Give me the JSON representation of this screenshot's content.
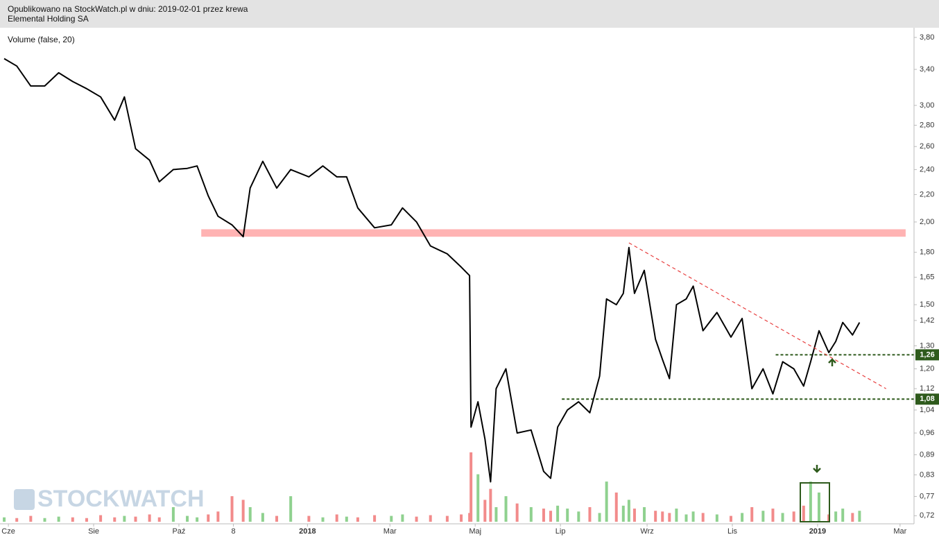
{
  "header": {
    "published": "Opublikowano na StockWatch.pl w dniu: 2019-02-01 przez krewa",
    "company": "Elemental Holding SA"
  },
  "logo": "STOCKWATCH",
  "chart_data": {
    "type": "line",
    "log_scale": true,
    "color": "#000000",
    "indicator_label": "Volume (false, 20)",
    "x": [
      "2017-05-29",
      "2017-06-07",
      "2017-06-17",
      "2017-06-27",
      "2017-07-07",
      "2017-07-17",
      "2017-07-27",
      "2017-08-06",
      "2017-08-16",
      "2017-08-23",
      "2017-08-31",
      "2017-09-10",
      "2017-09-17",
      "2017-09-27",
      "2017-10-07",
      "2017-10-14",
      "2017-10-22",
      "2017-10-29",
      "2017-11-08",
      "2017-11-16",
      "2017-11-21",
      "2017-11-30",
      "2017-12-10",
      "2017-12-20",
      "2018-01-02",
      "2018-01-12",
      "2018-01-22",
      "2018-01-29",
      "2018-02-06",
      "2018-02-18",
      "2018-03-02",
      "2018-03-10",
      "2018-03-20",
      "2018-03-30",
      "2018-04-11",
      "2018-04-21",
      "2018-04-27",
      "2018-04-28",
      "2018-05-03",
      "2018-05-08",
      "2018-05-12",
      "2018-05-16",
      "2018-05-23",
      "2018-05-31",
      "2018-06-10",
      "2018-06-19",
      "2018-06-24",
      "2018-06-29",
      "2018-07-06",
      "2018-07-14",
      "2018-07-22",
      "2018-07-29",
      "2018-08-03",
      "2018-08-10",
      "2018-08-15",
      "2018-08-19",
      "2018-08-23",
      "2018-08-30",
      "2018-09-07",
      "2018-09-12",
      "2018-09-17",
      "2018-09-22",
      "2018-09-29",
      "2018-10-04",
      "2018-10-11",
      "2018-10-21",
      "2018-10-31",
      "2018-11-08",
      "2018-11-15",
      "2018-11-23",
      "2018-11-30",
      "2018-12-07",
      "2018-12-15",
      "2018-12-22",
      "2018-12-27",
      "2019-01-02",
      "2019-01-09",
      "2019-01-14",
      "2019-01-19",
      "2019-01-26",
      "2019-01-31"
    ],
    "series": [
      {
        "name": "Elemental Holding SA",
        "color": "#000000",
        "values": [
          3.53,
          3.44,
          3.21,
          3.21,
          3.36,
          3.26,
          3.18,
          3.09,
          2.85,
          3.09,
          2.58,
          2.48,
          2.3,
          2.4,
          2.41,
          2.43,
          2.19,
          2.04,
          1.98,
          1.9,
          2.25,
          2.47,
          2.25,
          2.4,
          2.34,
          2.43,
          2.34,
          2.34,
          2.1,
          1.96,
          1.98,
          2.1,
          2.0,
          1.84,
          1.79,
          1.71,
          1.66,
          0.98,
          1.07,
          0.94,
          0.81,
          1.12,
          1.2,
          0.96,
          0.97,
          0.84,
          0.82,
          0.98,
          1.04,
          1.07,
          1.03,
          1.17,
          1.53,
          1.5,
          1.56,
          1.83,
          1.56,
          1.69,
          1.33,
          1.24,
          1.16,
          1.5,
          1.53,
          1.6,
          1.37,
          1.46,
          1.34,
          1.43,
          1.12,
          1.2,
          1.1,
          1.23,
          1.2,
          1.13,
          1.23,
          1.37,
          1.27,
          1.32,
          1.41,
          1.35,
          1.41
        ]
      }
    ],
    "volume": {
      "name": "Volume (false, 20)",
      "up_color": "#8fd18f",
      "down_color": "#f28b8b",
      "values": [
        6,
        5,
        8,
        5,
        7,
        6,
        5,
        9,
        6,
        8,
        7,
        10,
        6,
        20,
        8,
        6,
        10,
        14,
        35,
        30,
        20,
        12,
        8,
        35,
        8,
        6,
        10,
        7,
        6,
        9,
        8,
        10,
        7,
        9,
        8,
        10,
        12,
        95,
        65,
        30,
        45,
        20,
        35,
        25,
        20,
        18,
        15,
        22,
        18,
        14,
        20,
        12,
        55,
        40,
        22,
        30,
        18,
        20,
        15,
        14,
        12,
        18,
        10,
        14,
        12,
        10,
        8,
        12,
        20,
        15,
        18,
        12,
        14,
        22,
        55,
        40,
        10,
        14,
        18,
        12,
        15
      ]
    },
    "xlim": [
      "2017-05-26",
      "2019-03-11"
    ],
    "xticks": [
      {
        "value": "2017-06-01",
        "label": "Cze"
      },
      {
        "value": "2017-08-01",
        "label": "Sie"
      },
      {
        "value": "2017-10-01",
        "label": "Paź"
      },
      {
        "value": "2017-11-09",
        "label": "8"
      },
      {
        "value": "2018-01-01",
        "label": "2018"
      },
      {
        "value": "2018-03-01",
        "label": "Mar"
      },
      {
        "value": "2018-05-01",
        "label": "Maj"
      },
      {
        "value": "2018-07-01",
        "label": "Lip"
      },
      {
        "value": "2018-09-01",
        "label": "Wrz"
      },
      {
        "value": "2018-11-01",
        "label": "Lis"
      },
      {
        "value": "2019-01-01",
        "label": "2019"
      },
      {
        "value": "2019-03-01",
        "label": "Mar"
      }
    ],
    "ylim": [
      0.7,
      3.93
    ],
    "yticks": [
      {
        "value": 3.8,
        "label": "3,80"
      },
      {
        "value": 3.4,
        "label": "3,40"
      },
      {
        "value": 3.0,
        "label": "3,00"
      },
      {
        "value": 2.8,
        "label": "2,80"
      },
      {
        "value": 2.6,
        "label": "2,60"
      },
      {
        "value": 2.4,
        "label": "2,40"
      },
      {
        "value": 2.2,
        "label": "2,20"
      },
      {
        "value": 2.0,
        "label": "2,00"
      },
      {
        "value": 1.8,
        "label": "1,80"
      },
      {
        "value": 1.65,
        "label": "1,65"
      },
      {
        "value": 1.5,
        "label": "1,50"
      },
      {
        "value": 1.42,
        "label": "1,42"
      },
      {
        "value": 1.3,
        "label": "1,30"
      },
      {
        "value": 1.2,
        "label": "1,20"
      },
      {
        "value": 1.12,
        "label": "1,12"
      },
      {
        "value": 1.04,
        "label": "1,04"
      },
      {
        "value": 0.96,
        "label": "0,96"
      },
      {
        "value": 0.89,
        "label": "0,89"
      },
      {
        "value": 0.83,
        "label": "0,83"
      },
      {
        "value": 0.77,
        "label": "0,77"
      },
      {
        "value": 0.72,
        "label": "0,72"
      }
    ],
    "zone": {
      "from": 1.9,
      "to": 1.95,
      "start": "2017-10-17",
      "end": "2019-03-05",
      "color": "#ffb3b3"
    },
    "levels": [
      {
        "value": 1.26,
        "label": "1,26",
        "start": "2018-12-02",
        "color": "#2e5a1c"
      },
      {
        "value": 1.08,
        "label": "1,08",
        "start": "2018-07-02",
        "color": "#2e5a1c"
      }
    ],
    "trendline": {
      "start": [
        "2018-08-19",
        1.86
      ],
      "end": [
        "2019-02-19",
        1.12
      ],
      "color": "#e84040"
    }
  }
}
